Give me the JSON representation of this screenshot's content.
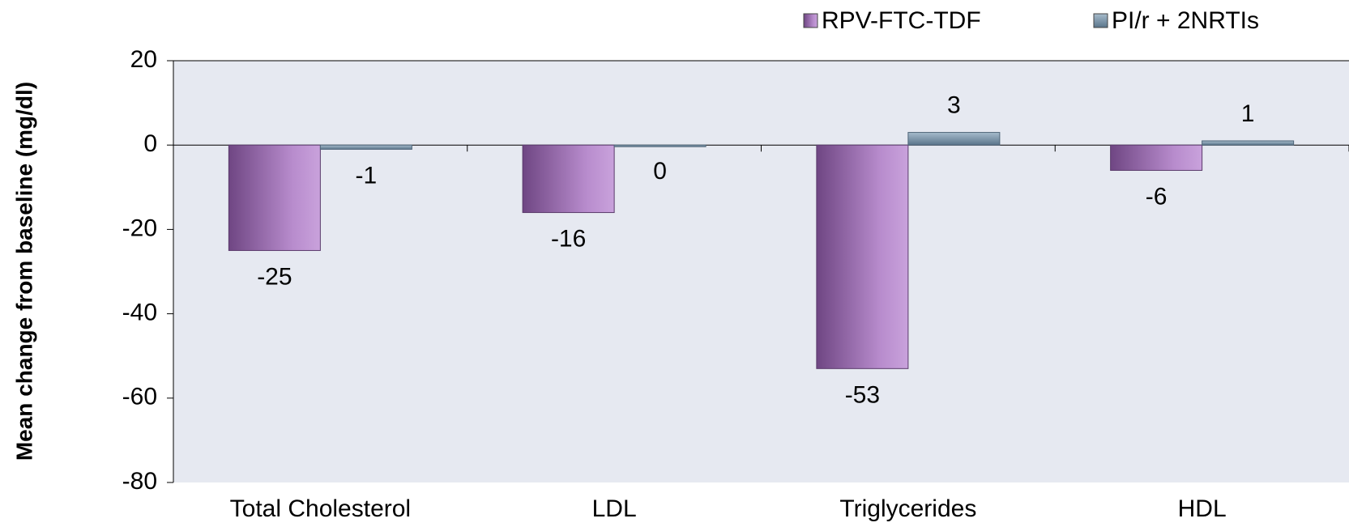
{
  "chart_data": {
    "type": "bar",
    "y_axis_label": "Mean change from baseline (mg/dl)",
    "categories": [
      "Total Cholesterol",
      "LDL",
      "Triglycerides",
      "HDL"
    ],
    "series": [
      {
        "name": "RPV-FTC-TDF",
        "color": "#9a6cb0",
        "values": [
          -25,
          -16,
          -53,
          -6
        ]
      },
      {
        "name": "PI/r + 2NRTIs",
        "color": "#7f98ad",
        "values": [
          -1,
          0,
          3,
          1
        ]
      }
    ],
    "ylim": [
      -80,
      20
    ],
    "yticks": [
      -80,
      -60,
      -40,
      -20,
      0,
      20
    ],
    "legend": "top-right"
  }
}
